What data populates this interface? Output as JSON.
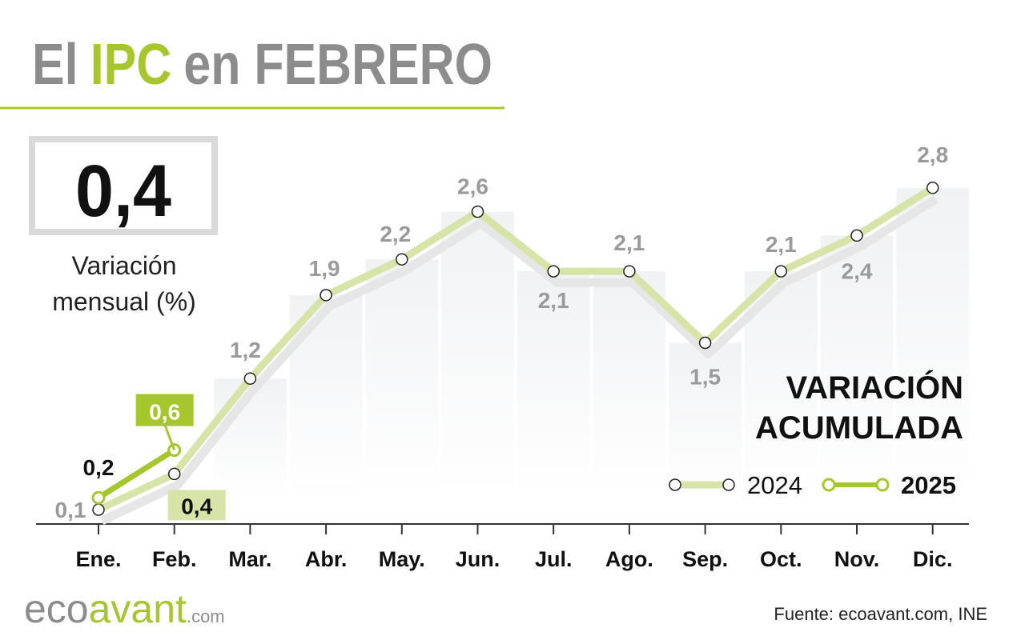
{
  "title_segments": [
    {
      "text": "El",
      "color": "#8c8c8c"
    },
    {
      "text": "IPC",
      "color": "#a6c72b"
    },
    {
      "text": "en FEBRERO",
      "color": "#8c8c8c"
    }
  ],
  "headline": "0,4",
  "headline_caption": [
    "Variación",
    "mensual (%)"
  ],
  "chart_data": {
    "type": "line",
    "categories": [
      "Ene.",
      "Feb.",
      "Mar.",
      "Abr.",
      "May.",
      "Jun.",
      "Jul.",
      "Ago.",
      "Sep.",
      "Oct.",
      "Nov.",
      "Dic."
    ],
    "series": [
      {
        "name": "2024",
        "color": "#d7e4a8",
        "values": [
          0.1,
          0.4,
          1.2,
          1.9,
          2.2,
          2.6,
          2.1,
          2.1,
          1.5,
          2.1,
          2.4,
          2.8
        ],
        "value_labels": [
          "0,1",
          "0,4",
          "1,2",
          "1,9",
          "2,2",
          "2,6",
          "2,1",
          "2,1",
          "1,5",
          "2,1",
          "2,4",
          "2,8"
        ]
      },
      {
        "name": "2025",
        "color": "#a6c72b",
        "values": [
          0.2,
          0.6,
          null,
          null,
          null,
          null,
          null,
          null,
          null,
          null,
          null,
          null
        ],
        "value_labels": [
          "0,2",
          "0,6",
          null,
          null,
          null,
          null,
          null,
          null,
          null,
          null,
          null,
          null
        ]
      }
    ],
    "ylim": [
      0,
      3
    ],
    "legend_title": [
      "VARIACIÓN",
      "ACUMULADA"
    ],
    "legend_position": "lower right"
  },
  "logo": [
    "eco",
    "avant",
    ".com"
  ],
  "source": "Fuente: ecoavant.com, INE"
}
